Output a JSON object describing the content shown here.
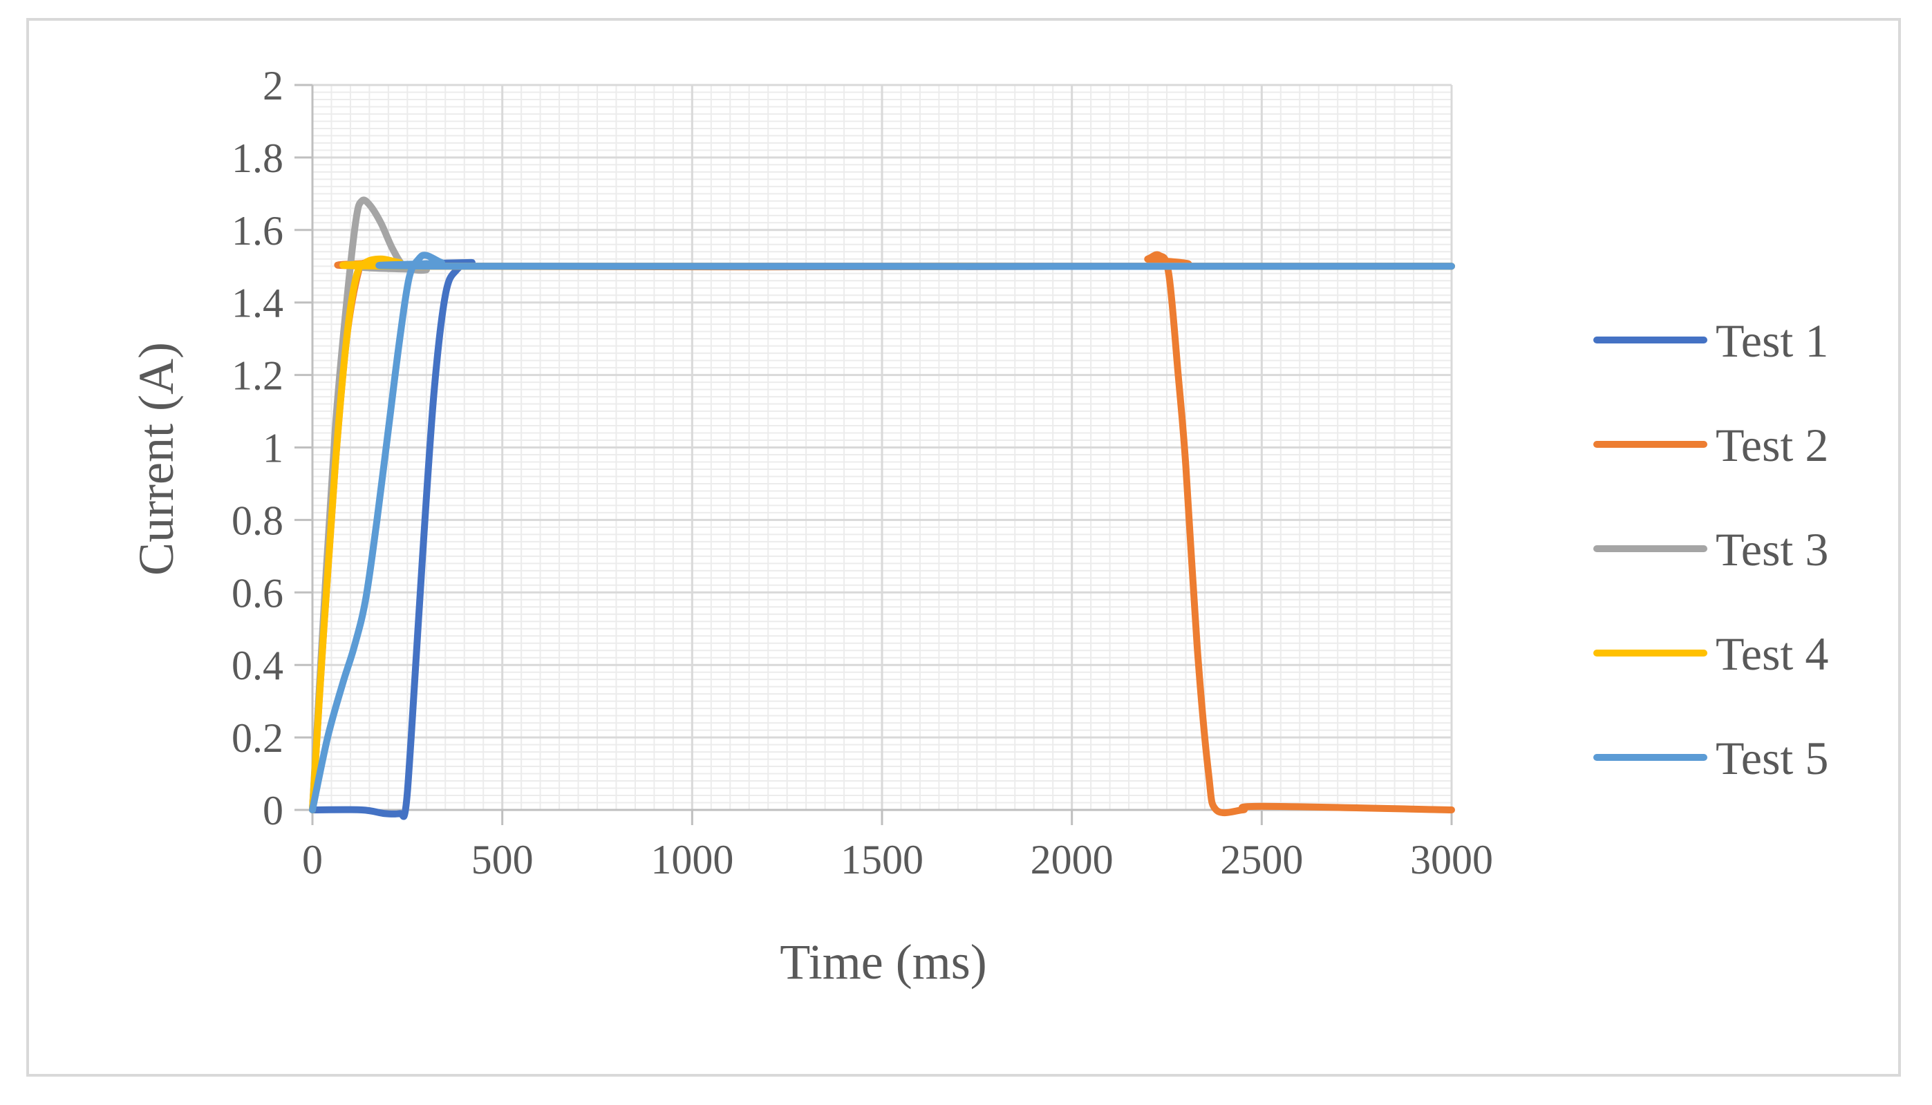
{
  "chart_data": {
    "type": "line",
    "title": "",
    "xlabel": "Time (ms)",
    "ylabel": "Current (A)",
    "xlim": [
      0,
      3000
    ],
    "ylim": [
      0,
      2
    ],
    "x_ticks": [
      "0",
      "500",
      "1000",
      "1500",
      "2000",
      "2500",
      "3000"
    ],
    "y_ticks": [
      "0",
      "0.2",
      "0.4",
      "0.6",
      "0.8",
      "1",
      "1.2",
      "1.4",
      "1.6",
      "1.8",
      "2"
    ],
    "grid": {
      "major": true,
      "minor": true
    },
    "legend_position": "right",
    "series": [
      {
        "name": "Test 1",
        "color": "#4472c4",
        "points": [
          [
            0,
            0
          ],
          [
            130,
            0
          ],
          [
            190,
            -0.01
          ],
          [
            230,
            -0.01
          ],
          [
            245,
            0
          ],
          [
            260,
            0.2
          ],
          [
            290,
            0.7
          ],
          [
            320,
            1.15
          ],
          [
            350,
            1.42
          ],
          [
            380,
            1.49
          ],
          [
            420,
            1.51
          ],
          [
            470,
            1.5
          ],
          [
            3000,
            1.5
          ]
        ]
      },
      {
        "name": "Test 2",
        "color": "#ed7d31",
        "points": [
          [
            0,
            0
          ],
          [
            30,
            0.5
          ],
          [
            60,
            0.95
          ],
          [
            90,
            1.3
          ],
          [
            120,
            1.48
          ],
          [
            140,
            1.51
          ],
          [
            180,
            1.51
          ],
          [
            220,
            1.5
          ],
          [
            2150,
            1.5
          ],
          [
            2200,
            1.52
          ],
          [
            2230,
            1.53
          ],
          [
            2255,
            1.48
          ],
          [
            2280,
            1.2
          ],
          [
            2300,
            0.95
          ],
          [
            2330,
            0.45
          ],
          [
            2360,
            0.1
          ],
          [
            2380,
            0
          ],
          [
            2450,
            0
          ],
          [
            2500,
            0.01
          ],
          [
            3000,
            0
          ]
        ]
      },
      {
        "name": "Test 3",
        "color": "#a5a5a5",
        "points": [
          [
            0,
            0
          ],
          [
            30,
            0.55
          ],
          [
            60,
            1.05
          ],
          [
            90,
            1.4
          ],
          [
            115,
            1.63
          ],
          [
            130,
            1.68
          ],
          [
            150,
            1.67
          ],
          [
            180,
            1.62
          ],
          [
            210,
            1.55
          ],
          [
            240,
            1.5
          ],
          [
            270,
            1.49
          ],
          [
            300,
            1.49
          ],
          [
            340,
            1.5
          ],
          [
            3000,
            1.5
          ]
        ]
      },
      {
        "name": "Test 4",
        "color": "#ffc000",
        "points": [
          [
            0,
            0
          ],
          [
            30,
            0.5
          ],
          [
            60,
            0.95
          ],
          [
            90,
            1.3
          ],
          [
            115,
            1.47
          ],
          [
            140,
            1.51
          ],
          [
            180,
            1.52
          ],
          [
            230,
            1.51
          ],
          [
            300,
            1.5
          ],
          [
            3000,
            1.5
          ]
        ]
      },
      {
        "name": "Test 5",
        "color": "#5b9bd5",
        "points": [
          [
            0,
            0
          ],
          [
            40,
            0.2
          ],
          [
            80,
            0.35
          ],
          [
            110,
            0.45
          ],
          [
            140,
            0.58
          ],
          [
            170,
            0.8
          ],
          [
            200,
            1.05
          ],
          [
            230,
            1.3
          ],
          [
            255,
            1.47
          ],
          [
            280,
            1.52
          ],
          [
            300,
            1.53
          ],
          [
            340,
            1.51
          ],
          [
            380,
            1.5
          ],
          [
            3000,
            1.5
          ]
        ]
      }
    ]
  }
}
